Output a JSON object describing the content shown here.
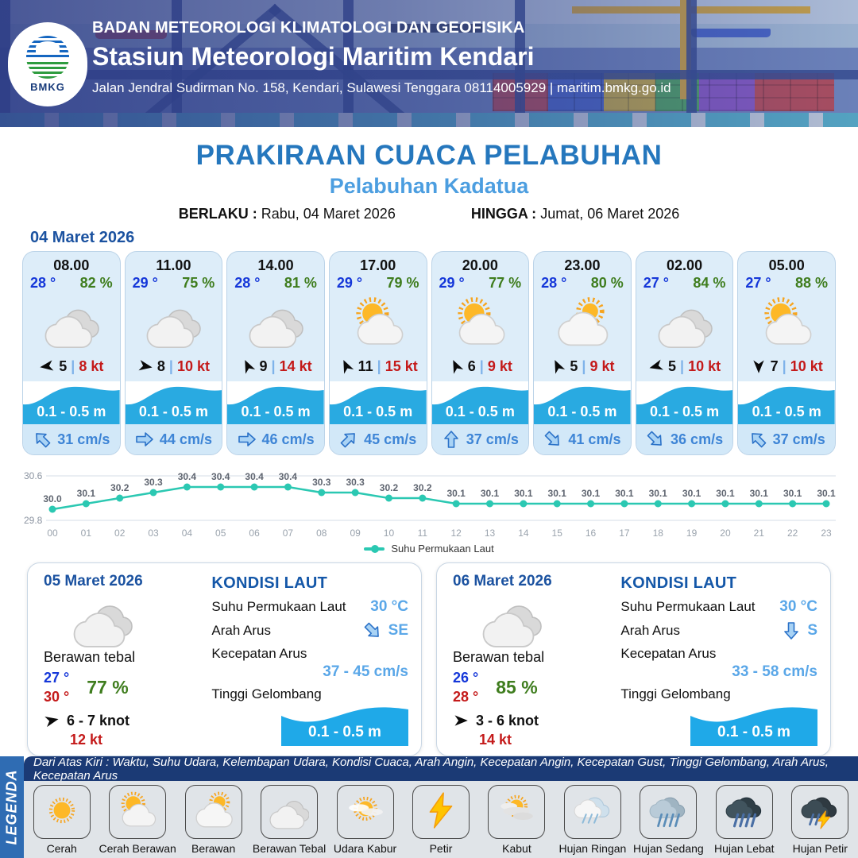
{
  "header": {
    "agency": "BADAN METEOROLOGI KLIMATOLOGI DAN GEOFISIKA",
    "station": "Stasiun Meteorologi Maritim Kendari",
    "address": "Jalan Jendral Sudirman No. 158, Kendari, Sulawesi Tenggara  08114005929 | maritim.bmkg.go.id",
    "logo_label": "BMKG"
  },
  "title": {
    "main": "PRAKIRAAN CUACA PELABUHAN",
    "subtitle": "Pelabuhan Kadatua",
    "berlaku_label": "BERLAKU :",
    "berlaku_value": "Rabu, 04 Maret 2026",
    "hingga_label": "HINGGA :",
    "hingga_value": "Jumat, 06 Maret 2026"
  },
  "forecast": {
    "date": "04 Maret 2026",
    "separator": "|",
    "cards": [
      {
        "time": "08.00",
        "temp": "28 °",
        "humidity": "82 %",
        "icon": "berawan-tebal",
        "wind_arrow_deg": 262,
        "wind_speed": "5",
        "gust": "8 kt",
        "wave": "0.1 - 0.5 m",
        "current_arrow_deg": 315,
        "current_speed": "31 cm/s"
      },
      {
        "time": "11.00",
        "temp": "29 °",
        "humidity": "75 %",
        "icon": "berawan-tebal",
        "wind_arrow_deg": 100,
        "wind_speed": "8",
        "gust": "10 kt",
        "wave": "0.1 - 0.5 m",
        "current_arrow_deg": 90,
        "current_speed": "44 cm/s"
      },
      {
        "time": "14.00",
        "temp": "28 °",
        "humidity": "81 %",
        "icon": "berawan-tebal",
        "wind_arrow_deg": 335,
        "wind_speed": "9",
        "gust": "14 kt",
        "wave": "0.1 - 0.5 m",
        "current_arrow_deg": 90,
        "current_speed": "46 cm/s"
      },
      {
        "time": "17.00",
        "temp": "29 °",
        "humidity": "79 %",
        "icon": "cerah-berawan",
        "wind_arrow_deg": 335,
        "wind_speed": "11",
        "gust": "15 kt",
        "wave": "0.1 - 0.5 m",
        "current_arrow_deg": 45,
        "current_speed": "45 cm/s"
      },
      {
        "time": "20.00",
        "temp": "29 °",
        "humidity": "77 %",
        "icon": "cerah-berawan",
        "wind_arrow_deg": 335,
        "wind_speed": "6",
        "gust": "9 kt",
        "wave": "0.1 - 0.5 m",
        "current_arrow_deg": 0,
        "current_speed": "37 cm/s"
      },
      {
        "time": "23.00",
        "temp": "28 °",
        "humidity": "80 %",
        "icon": "berawan",
        "wind_arrow_deg": 335,
        "wind_speed": "5",
        "gust": "9 kt",
        "wave": "0.1 - 0.5 m",
        "current_arrow_deg": 135,
        "current_speed": "41 cm/s"
      },
      {
        "time": "02.00",
        "temp": "27 °",
        "humidity": "84 %",
        "icon": "berawan-tebal",
        "wind_arrow_deg": 255,
        "wind_speed": "5",
        "gust": "10 kt",
        "wave": "0.1 - 0.5 m",
        "current_arrow_deg": 135,
        "current_speed": "36 cm/s"
      },
      {
        "time": "05.00",
        "temp": "27 °",
        "humidity": "88 %",
        "icon": "cerah-berawan",
        "wind_arrow_deg": 180,
        "wind_speed": "7",
        "gust": "10 kt",
        "wave": "0.1 - 0.5 m",
        "current_arrow_deg": 315,
        "current_speed": "37 cm/s"
      }
    ]
  },
  "chart_data": {
    "type": "line",
    "title": "",
    "xlabel": "",
    "ylabel": "",
    "x": [
      "00",
      "01",
      "02",
      "03",
      "04",
      "05",
      "06",
      "07",
      "08",
      "09",
      "10",
      "11",
      "12",
      "13",
      "14",
      "15",
      "16",
      "17",
      "18",
      "19",
      "20",
      "21",
      "22",
      "23"
    ],
    "series": [
      {
        "name": "Suhu Permukaan Laut",
        "values": [
          30.0,
          30.1,
          30.2,
          30.3,
          30.4,
          30.4,
          30.4,
          30.4,
          30.3,
          30.3,
          30.2,
          30.2,
          30.1,
          30.1,
          30.1,
          30.1,
          30.1,
          30.1,
          30.1,
          30.1,
          30.1,
          30.1,
          30.1,
          30.1
        ]
      }
    ],
    "ylim": [
      29.8,
      30.6
    ],
    "ytick_labels": [
      "30.6",
      "29.8"
    ],
    "grid": true,
    "legend_position": "bottom",
    "line_color": "#2BC8B2"
  },
  "daily": [
    {
      "date": "05 Maret 2026",
      "icon": "berawan-tebal",
      "condition": "Berawan tebal",
      "temp_min": "27 °",
      "temp_max": "30 °",
      "humidity": "77 %",
      "wind_arrow_deg": 78,
      "wind": "6 - 7 knot",
      "gust": "12 kt",
      "sea": {
        "title": "KONDISI LAUT",
        "sst_label": "Suhu Permukaan Laut",
        "sst_value": "30 °C",
        "arus_label": "Arah Arus",
        "arus_dir": "SE",
        "arus_deg": 135,
        "kecepatan_label": "Kecepatan Arus",
        "kecepatan_value": "37 - 45 cm/s",
        "gelombang_label": "Tinggi Gelombang",
        "gelombang_value": "0.1 - 0.5 m"
      }
    },
    {
      "date": "06 Maret 2026",
      "icon": "berawan-tebal",
      "condition": "Berawan tebal",
      "temp_min": "26 °",
      "temp_max": "28 °",
      "humidity": "85 %",
      "wind_arrow_deg": 90,
      "wind": "3 - 6 knot",
      "gust": "14 kt",
      "sea": {
        "title": "KONDISI LAUT",
        "sst_label": "Suhu Permukaan Laut",
        "sst_value": "30 °C",
        "arus_label": "Arah Arus",
        "arus_dir": "S",
        "arus_deg": 180,
        "kecepatan_label": "Kecepatan Arus",
        "kecepatan_value": "33 - 58 cm/s",
        "gelombang_label": "Tinggi Gelombang",
        "gelombang_value": "0.1 - 0.5 m"
      }
    }
  ],
  "legend": {
    "title": "LEGENDA",
    "note": "Dari Atas Kiri : Waktu, Suhu Udara, Kelembapan Udara, Kondisi Cuaca, Arah Angin, Kecepatan Angin, Kecepatan Gust, Tinggi Gelombang, Arah Arus, Kecepatan Arus",
    "items": [
      {
        "label": "Cerah",
        "icon": "cerah"
      },
      {
        "label": "Cerah Berawan",
        "icon": "cerah-berawan"
      },
      {
        "label": "Berawan",
        "icon": "berawan"
      },
      {
        "label": "Berawan Tebal",
        "icon": "berawan-tebal"
      },
      {
        "label": "Udara Kabur",
        "icon": "udara-kabur"
      },
      {
        "label": "Petir",
        "icon": "petir"
      },
      {
        "label": "Kabut",
        "icon": "kabut"
      },
      {
        "label": "Hujan Ringan",
        "icon": "hujan-ringan"
      },
      {
        "label": "Hujan Sedang",
        "icon": "hujan-sedang"
      },
      {
        "label": "Hujan Lebat",
        "icon": "hujan-lebat"
      },
      {
        "label": "Hujan Petir",
        "icon": "hujan-petir"
      }
    ]
  },
  "colors": {
    "header_overlay": "#2C3A84",
    "title_blue": "#2577BD",
    "subtitle_blue": "#4C9EE0",
    "date_blue": "#1B52A0",
    "temp_blue": "#1537D9",
    "humidity_green": "#3F7D1E",
    "gust_red": "#C41A1A",
    "wave_blue": "#29AAE1",
    "current_text_blue": "#3E85D6",
    "sea_value_blue": "#5AA7E8",
    "chart_teal": "#2BC8B2",
    "legend_bar_navy": "#1B3A75",
    "legenda_strip_blue": "#2F6CB3"
  }
}
